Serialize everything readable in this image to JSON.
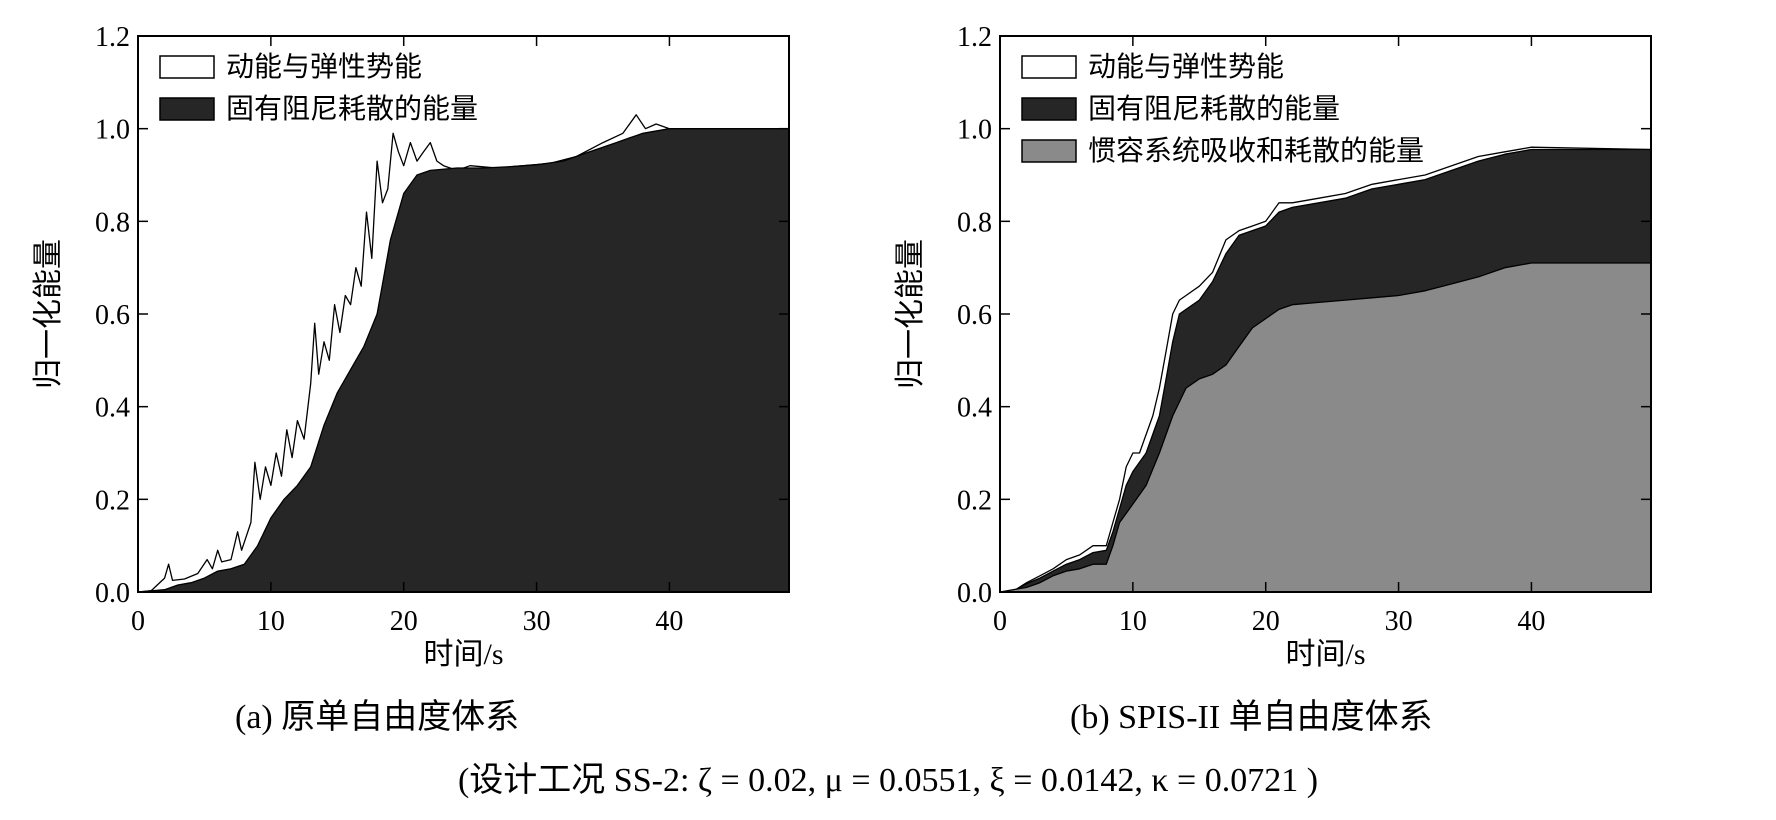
{
  "figure": {
    "caption_a": "(a)  原单自由度体系",
    "caption_b": "(b) SPIS-II 单自由度体系",
    "design_case": "(设计工况 SS-2:   ζ = 0.02, μ = 0.0551, ξ = 0.0142, κ = 0.0721 )"
  },
  "colors": {
    "kinetic_fill": "#ffffff",
    "damping_fill": "#262626",
    "inerter_fill": "#8a8a8a",
    "line": "#000000"
  },
  "chart_data": [
    {
      "type": "area",
      "panel": "a",
      "xlabel": "时间/s",
      "ylabel": "归一化能量",
      "xlim": [
        0,
        49
      ],
      "ylim": [
        0,
        1.2
      ],
      "xticks": [
        0,
        10,
        20,
        30,
        40
      ],
      "yticks": [
        0,
        0.2,
        0.4,
        0.6,
        0.8,
        1.0,
        1.2
      ],
      "ytick_labels": [
        "0.0",
        "0.2",
        "0.4",
        "0.6",
        "0.8",
        "1.0",
        "1.2"
      ],
      "legend_position": "top-left",
      "legend": [
        "动能与弹性势能",
        "固有阻尼耗散的能量"
      ],
      "series": [
        {
          "name": "动能与弹性势能",
          "kind": "total",
          "points": [
            [
              0,
              0
            ],
            [
              1,
              0.003
            ],
            [
              2,
              0.03
            ],
            [
              2.3,
              0.06
            ],
            [
              2.6,
              0.025
            ],
            [
              3.5,
              0.028
            ],
            [
              4.5,
              0.04
            ],
            [
              5.2,
              0.07
            ],
            [
              5.6,
              0.05
            ],
            [
              6,
              0.09
            ],
            [
              6.3,
              0.065
            ],
            [
              7,
              0.07
            ],
            [
              7.5,
              0.13
            ],
            [
              7.8,
              0.09
            ],
            [
              8.5,
              0.15
            ],
            [
              8.8,
              0.28
            ],
            [
              9.2,
              0.2
            ],
            [
              9.6,
              0.27
            ],
            [
              10,
              0.23
            ],
            [
              10.4,
              0.3
            ],
            [
              10.8,
              0.25
            ],
            [
              11.2,
              0.35
            ],
            [
              11.6,
              0.29
            ],
            [
              12,
              0.37
            ],
            [
              12.5,
              0.33
            ],
            [
              13,
              0.45
            ],
            [
              13.3,
              0.58
            ],
            [
              13.6,
              0.47
            ],
            [
              14,
              0.54
            ],
            [
              14.4,
              0.5
            ],
            [
              14.8,
              0.62
            ],
            [
              15.2,
              0.56
            ],
            [
              15.6,
              0.64
            ],
            [
              16,
              0.62
            ],
            [
              16.4,
              0.7
            ],
            [
              16.8,
              0.66
            ],
            [
              17.2,
              0.82
            ],
            [
              17.6,
              0.72
            ],
            [
              18,
              0.93
            ],
            [
              18.4,
              0.84
            ],
            [
              18.8,
              0.87
            ],
            [
              19.2,
              0.99
            ],
            [
              19.6,
              0.95
            ],
            [
              20,
              0.92
            ],
            [
              20.5,
              0.97
            ],
            [
              21,
              0.93
            ],
            [
              21.5,
              0.95
            ],
            [
              22,
              0.97
            ],
            [
              22.5,
              0.93
            ],
            [
              23,
              0.92
            ],
            [
              24,
              0.91
            ],
            [
              25,
              0.92
            ],
            [
              27,
              0.915
            ],
            [
              29,
              0.92
            ],
            [
              31,
              0.925
            ],
            [
              33,
              0.94
            ],
            [
              35,
              0.97
            ],
            [
              36.5,
              0.99
            ],
            [
              37.5,
              1.03
            ],
            [
              38.2,
              1.0
            ],
            [
              39,
              1.01
            ],
            [
              40,
              1.0
            ],
            [
              49,
              1.0
            ]
          ]
        },
        {
          "name": "固有阻尼耗散的能量",
          "kind": "damping",
          "points": [
            [
              0,
              0
            ],
            [
              2,
              0.005
            ],
            [
              3,
              0.015
            ],
            [
              4,
              0.02
            ],
            [
              5,
              0.03
            ],
            [
              6,
              0.045
            ],
            [
              7,
              0.05
            ],
            [
              8,
              0.06
            ],
            [
              9,
              0.1
            ],
            [
              10,
              0.16
            ],
            [
              11,
              0.2
            ],
            [
              12,
              0.23
            ],
            [
              13,
              0.27
            ],
            [
              14,
              0.36
            ],
            [
              15,
              0.43
            ],
            [
              16,
              0.48
            ],
            [
              17,
              0.53
            ],
            [
              18,
              0.6
            ],
            [
              18.5,
              0.68
            ],
            [
              19,
              0.76
            ],
            [
              19.5,
              0.81
            ],
            [
              20,
              0.86
            ],
            [
              21,
              0.9
            ],
            [
              22,
              0.91
            ],
            [
              24,
              0.915
            ],
            [
              26,
              0.915
            ],
            [
              28,
              0.918
            ],
            [
              30,
              0.922
            ],
            [
              32,
              0.93
            ],
            [
              34,
              0.95
            ],
            [
              36,
              0.97
            ],
            [
              37,
              0.98
            ],
            [
              38,
              0.99
            ],
            [
              40,
              1.0
            ],
            [
              49,
              1.0
            ]
          ]
        }
      ]
    },
    {
      "type": "area",
      "panel": "b",
      "xlabel": "时间/s",
      "ylabel": "归一化能量",
      "xlim": [
        0,
        49
      ],
      "ylim": [
        0,
        1.2
      ],
      "xticks": [
        0,
        10,
        20,
        30,
        40
      ],
      "yticks": [
        0,
        0.2,
        0.4,
        0.6,
        0.8,
        1.0,
        1.2
      ],
      "ytick_labels": [
        "0.0",
        "0.2",
        "0.4",
        "0.6",
        "0.8",
        "1.0",
        "1.2"
      ],
      "legend_position": "top-left",
      "legend": [
        "动能与弹性势能",
        "固有阻尼耗散的能量",
        "惯容系统吸收和耗散的能量"
      ],
      "series": [
        {
          "name": "动能与弹性势能",
          "kind": "total",
          "points": [
            [
              0,
              0
            ],
            [
              1,
              0.002
            ],
            [
              2,
              0.02
            ],
            [
              3,
              0.035
            ],
            [
              4,
              0.05
            ],
            [
              5,
              0.07
            ],
            [
              6,
              0.08
            ],
            [
              7,
              0.1
            ],
            [
              8,
              0.1
            ],
            [
              8.5,
              0.15
            ],
            [
              9,
              0.2
            ],
            [
              9.5,
              0.27
            ],
            [
              10,
              0.3
            ],
            [
              10.5,
              0.3
            ],
            [
              11,
              0.34
            ],
            [
              11.5,
              0.38
            ],
            [
              12,
              0.44
            ],
            [
              12.5,
              0.52
            ],
            [
              13,
              0.6
            ],
            [
              13.5,
              0.63
            ],
            [
              14,
              0.64
            ],
            [
              15,
              0.66
            ],
            [
              16,
              0.69
            ],
            [
              17,
              0.76
            ],
            [
              18,
              0.78
            ],
            [
              19,
              0.79
            ],
            [
              20,
              0.8
            ],
            [
              21,
              0.84
            ],
            [
              22,
              0.84
            ],
            [
              24,
              0.85
            ],
            [
              26,
              0.86
            ],
            [
              28,
              0.88
            ],
            [
              30,
              0.89
            ],
            [
              32,
              0.9
            ],
            [
              34,
              0.92
            ],
            [
              36,
              0.94
            ],
            [
              38,
              0.95
            ],
            [
              40,
              0.96
            ],
            [
              49,
              0.955
            ]
          ]
        },
        {
          "name": "固有阻尼耗散的能量",
          "kind": "damping",
          "points": [
            [
              0,
              0
            ],
            [
              1,
              0.002
            ],
            [
              2,
              0.018
            ],
            [
              3,
              0.03
            ],
            [
              4,
              0.045
            ],
            [
              5,
              0.06
            ],
            [
              6,
              0.07
            ],
            [
              7,
              0.085
            ],
            [
              8,
              0.09
            ],
            [
              8.5,
              0.13
            ],
            [
              9,
              0.18
            ],
            [
              9.5,
              0.23
            ],
            [
              10,
              0.26
            ],
            [
              11,
              0.3
            ],
            [
              12,
              0.38
            ],
            [
              12.5,
              0.46
            ],
            [
              13,
              0.54
            ],
            [
              13.5,
              0.6
            ],
            [
              14,
              0.61
            ],
            [
              15,
              0.63
            ],
            [
              16,
              0.67
            ],
            [
              17,
              0.73
            ],
            [
              18,
              0.77
            ],
            [
              19,
              0.78
            ],
            [
              20,
              0.79
            ],
            [
              21,
              0.82
            ],
            [
              22,
              0.83
            ],
            [
              24,
              0.84
            ],
            [
              26,
              0.85
            ],
            [
              28,
              0.87
            ],
            [
              30,
              0.88
            ],
            [
              32,
              0.89
            ],
            [
              34,
              0.91
            ],
            [
              36,
              0.93
            ],
            [
              38,
              0.945
            ],
            [
              40,
              0.955
            ],
            [
              49,
              0.955
            ]
          ]
        },
        {
          "name": "惯容系统吸收和耗散的能量",
          "kind": "inerter",
          "points": [
            [
              0,
              0
            ],
            [
              2,
              0.01
            ],
            [
              3,
              0.02
            ],
            [
              4,
              0.035
            ],
            [
              5,
              0.045
            ],
            [
              6,
              0.05
            ],
            [
              7,
              0.06
            ],
            [
              8,
              0.06
            ],
            [
              8.5,
              0.1
            ],
            [
              9,
              0.15
            ],
            [
              10,
              0.19
            ],
            [
              11,
              0.23
            ],
            [
              12,
              0.3
            ],
            [
              13,
              0.38
            ],
            [
              14,
              0.44
            ],
            [
              15,
              0.46
            ],
            [
              16,
              0.47
            ],
            [
              17,
              0.49
            ],
            [
              18,
              0.53
            ],
            [
              19,
              0.57
            ],
            [
              20,
              0.59
            ],
            [
              21,
              0.61
            ],
            [
              22,
              0.62
            ],
            [
              24,
              0.625
            ],
            [
              26,
              0.63
            ],
            [
              28,
              0.635
            ],
            [
              30,
              0.64
            ],
            [
              32,
              0.65
            ],
            [
              34,
              0.665
            ],
            [
              36,
              0.68
            ],
            [
              38,
              0.7
            ],
            [
              40,
              0.71
            ],
            [
              49,
              0.71
            ]
          ]
        }
      ]
    }
  ]
}
